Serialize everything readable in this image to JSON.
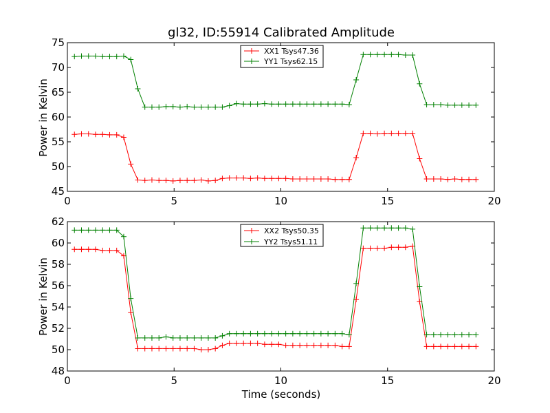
{
  "chart_data": [
    {
      "type": "line",
      "title": "gl32, ID:55914 Calibrated Amplitude",
      "xlabel": "",
      "ylabel": "Power in Kelvin",
      "xlim": [
        0,
        20
      ],
      "ylim": [
        45,
        75
      ],
      "xticks": [
        "0",
        "5",
        "10",
        "15",
        "20"
      ],
      "yticks": [
        "45",
        "50",
        "55",
        "60",
        "65",
        "70",
        "75"
      ],
      "legend_position": "top-center",
      "grid": false,
      "x": [
        0.33,
        0.66,
        0.99,
        1.32,
        1.65,
        1.98,
        2.31,
        2.64,
        2.97,
        3.3,
        3.63,
        3.96,
        4.29,
        4.62,
        4.95,
        5.28,
        5.61,
        5.94,
        6.27,
        6.6,
        6.93,
        7.26,
        7.59,
        7.92,
        8.25,
        8.58,
        8.91,
        9.24,
        9.57,
        9.9,
        10.23,
        10.56,
        10.89,
        11.22,
        11.55,
        11.88,
        12.21,
        12.54,
        12.87,
        13.2,
        13.53,
        13.86,
        14.19,
        14.52,
        14.85,
        15.18,
        15.51,
        15.84,
        16.17,
        16.5,
        16.83,
        17.16,
        17.49,
        17.82,
        18.15,
        18.48,
        18.81,
        19.14
      ],
      "series": [
        {
          "name": "XX1 Tsys47.36",
          "color": "#ff0000",
          "values": [
            56.5,
            56.6,
            56.6,
            56.5,
            56.5,
            56.4,
            56.4,
            55.9,
            50.5,
            47.3,
            47.2,
            47.3,
            47.2,
            47.2,
            47.1,
            47.2,
            47.2,
            47.2,
            47.3,
            47.1,
            47.2,
            47.6,
            47.7,
            47.7,
            47.7,
            47.6,
            47.7,
            47.6,
            47.6,
            47.6,
            47.6,
            47.5,
            47.5,
            47.5,
            47.5,
            47.5,
            47.5,
            47.4,
            47.4,
            47.4,
            51.8,
            56.7,
            56.7,
            56.6,
            56.7,
            56.7,
            56.7,
            56.7,
            56.7,
            51.6,
            47.5,
            47.5,
            47.5,
            47.4,
            47.5,
            47.4,
            47.4,
            47.4
          ]
        },
        {
          "name": "YY1 Tsys62.15",
          "color": "#008000",
          "values": [
            72.2,
            72.3,
            72.3,
            72.3,
            72.2,
            72.2,
            72.2,
            72.3,
            71.6,
            65.7,
            62.0,
            62.0,
            62.0,
            62.1,
            62.1,
            62.0,
            62.1,
            62.0,
            62.0,
            62.0,
            62.0,
            62.0,
            62.3,
            62.7,
            62.6,
            62.6,
            62.6,
            62.7,
            62.6,
            62.6,
            62.6,
            62.6,
            62.6,
            62.6,
            62.6,
            62.6,
            62.6,
            62.6,
            62.6,
            62.5,
            67.5,
            72.6,
            72.6,
            72.6,
            72.6,
            72.6,
            72.6,
            72.5,
            72.5,
            66.7,
            62.5,
            62.5,
            62.5,
            62.4,
            62.4,
            62.4,
            62.4,
            62.4
          ]
        }
      ]
    },
    {
      "type": "line",
      "title": "",
      "xlabel": "Time (seconds)",
      "ylabel": "Power in Kelvin",
      "xlim": [
        0,
        20
      ],
      "ylim": [
        48,
        62
      ],
      "xticks": [
        "0",
        "5",
        "10",
        "15",
        "20"
      ],
      "yticks": [
        "48",
        "50",
        "52",
        "54",
        "56",
        "58",
        "60",
        "62"
      ],
      "legend_position": "top-center",
      "grid": false,
      "x": [
        0.33,
        0.66,
        0.99,
        1.32,
        1.65,
        1.98,
        2.31,
        2.64,
        2.97,
        3.3,
        3.63,
        3.96,
        4.29,
        4.62,
        4.95,
        5.28,
        5.61,
        5.94,
        6.27,
        6.6,
        6.93,
        7.26,
        7.59,
        7.92,
        8.25,
        8.58,
        8.91,
        9.24,
        9.57,
        9.9,
        10.23,
        10.56,
        10.89,
        11.22,
        11.55,
        11.88,
        12.21,
        12.54,
        12.87,
        13.2,
        13.53,
        13.86,
        14.19,
        14.52,
        14.85,
        15.18,
        15.51,
        15.84,
        16.17,
        16.5,
        16.83,
        17.16,
        17.49,
        17.82,
        18.15,
        18.48,
        18.81,
        19.14
      ],
      "series": [
        {
          "name": "XX2 Tsys50.35",
          "color": "#ff0000",
          "values": [
            59.4,
            59.4,
            59.4,
            59.4,
            59.3,
            59.3,
            59.3,
            58.8,
            53.5,
            50.1,
            50.1,
            50.1,
            50.1,
            50.1,
            50.1,
            50.1,
            50.1,
            50.1,
            50.0,
            50.0,
            50.1,
            50.4,
            50.6,
            50.6,
            50.6,
            50.6,
            50.6,
            50.5,
            50.5,
            50.5,
            50.4,
            50.4,
            50.4,
            50.4,
            50.4,
            50.4,
            50.4,
            50.4,
            50.3,
            50.3,
            54.7,
            59.5,
            59.5,
            59.5,
            59.5,
            59.6,
            59.6,
            59.6,
            59.7,
            54.5,
            50.3,
            50.3,
            50.3,
            50.3,
            50.3,
            50.3,
            50.3,
            50.3
          ]
        },
        {
          "name": "YY2 Tsys51.11",
          "color": "#008000",
          "values": [
            61.2,
            61.2,
            61.2,
            61.2,
            61.2,
            61.2,
            61.2,
            60.6,
            54.8,
            51.1,
            51.1,
            51.1,
            51.1,
            51.2,
            51.1,
            51.1,
            51.1,
            51.1,
            51.1,
            51.1,
            51.1,
            51.3,
            51.5,
            51.5,
            51.5,
            51.5,
            51.5,
            51.5,
            51.5,
            51.5,
            51.5,
            51.5,
            51.5,
            51.5,
            51.5,
            51.5,
            51.5,
            51.5,
            51.5,
            51.4,
            56.2,
            61.4,
            61.4,
            61.4,
            61.4,
            61.4,
            61.4,
            61.4,
            61.3,
            55.9,
            51.4,
            51.4,
            51.4,
            51.4,
            51.4,
            51.4,
            51.4,
            51.4
          ]
        }
      ]
    }
  ]
}
